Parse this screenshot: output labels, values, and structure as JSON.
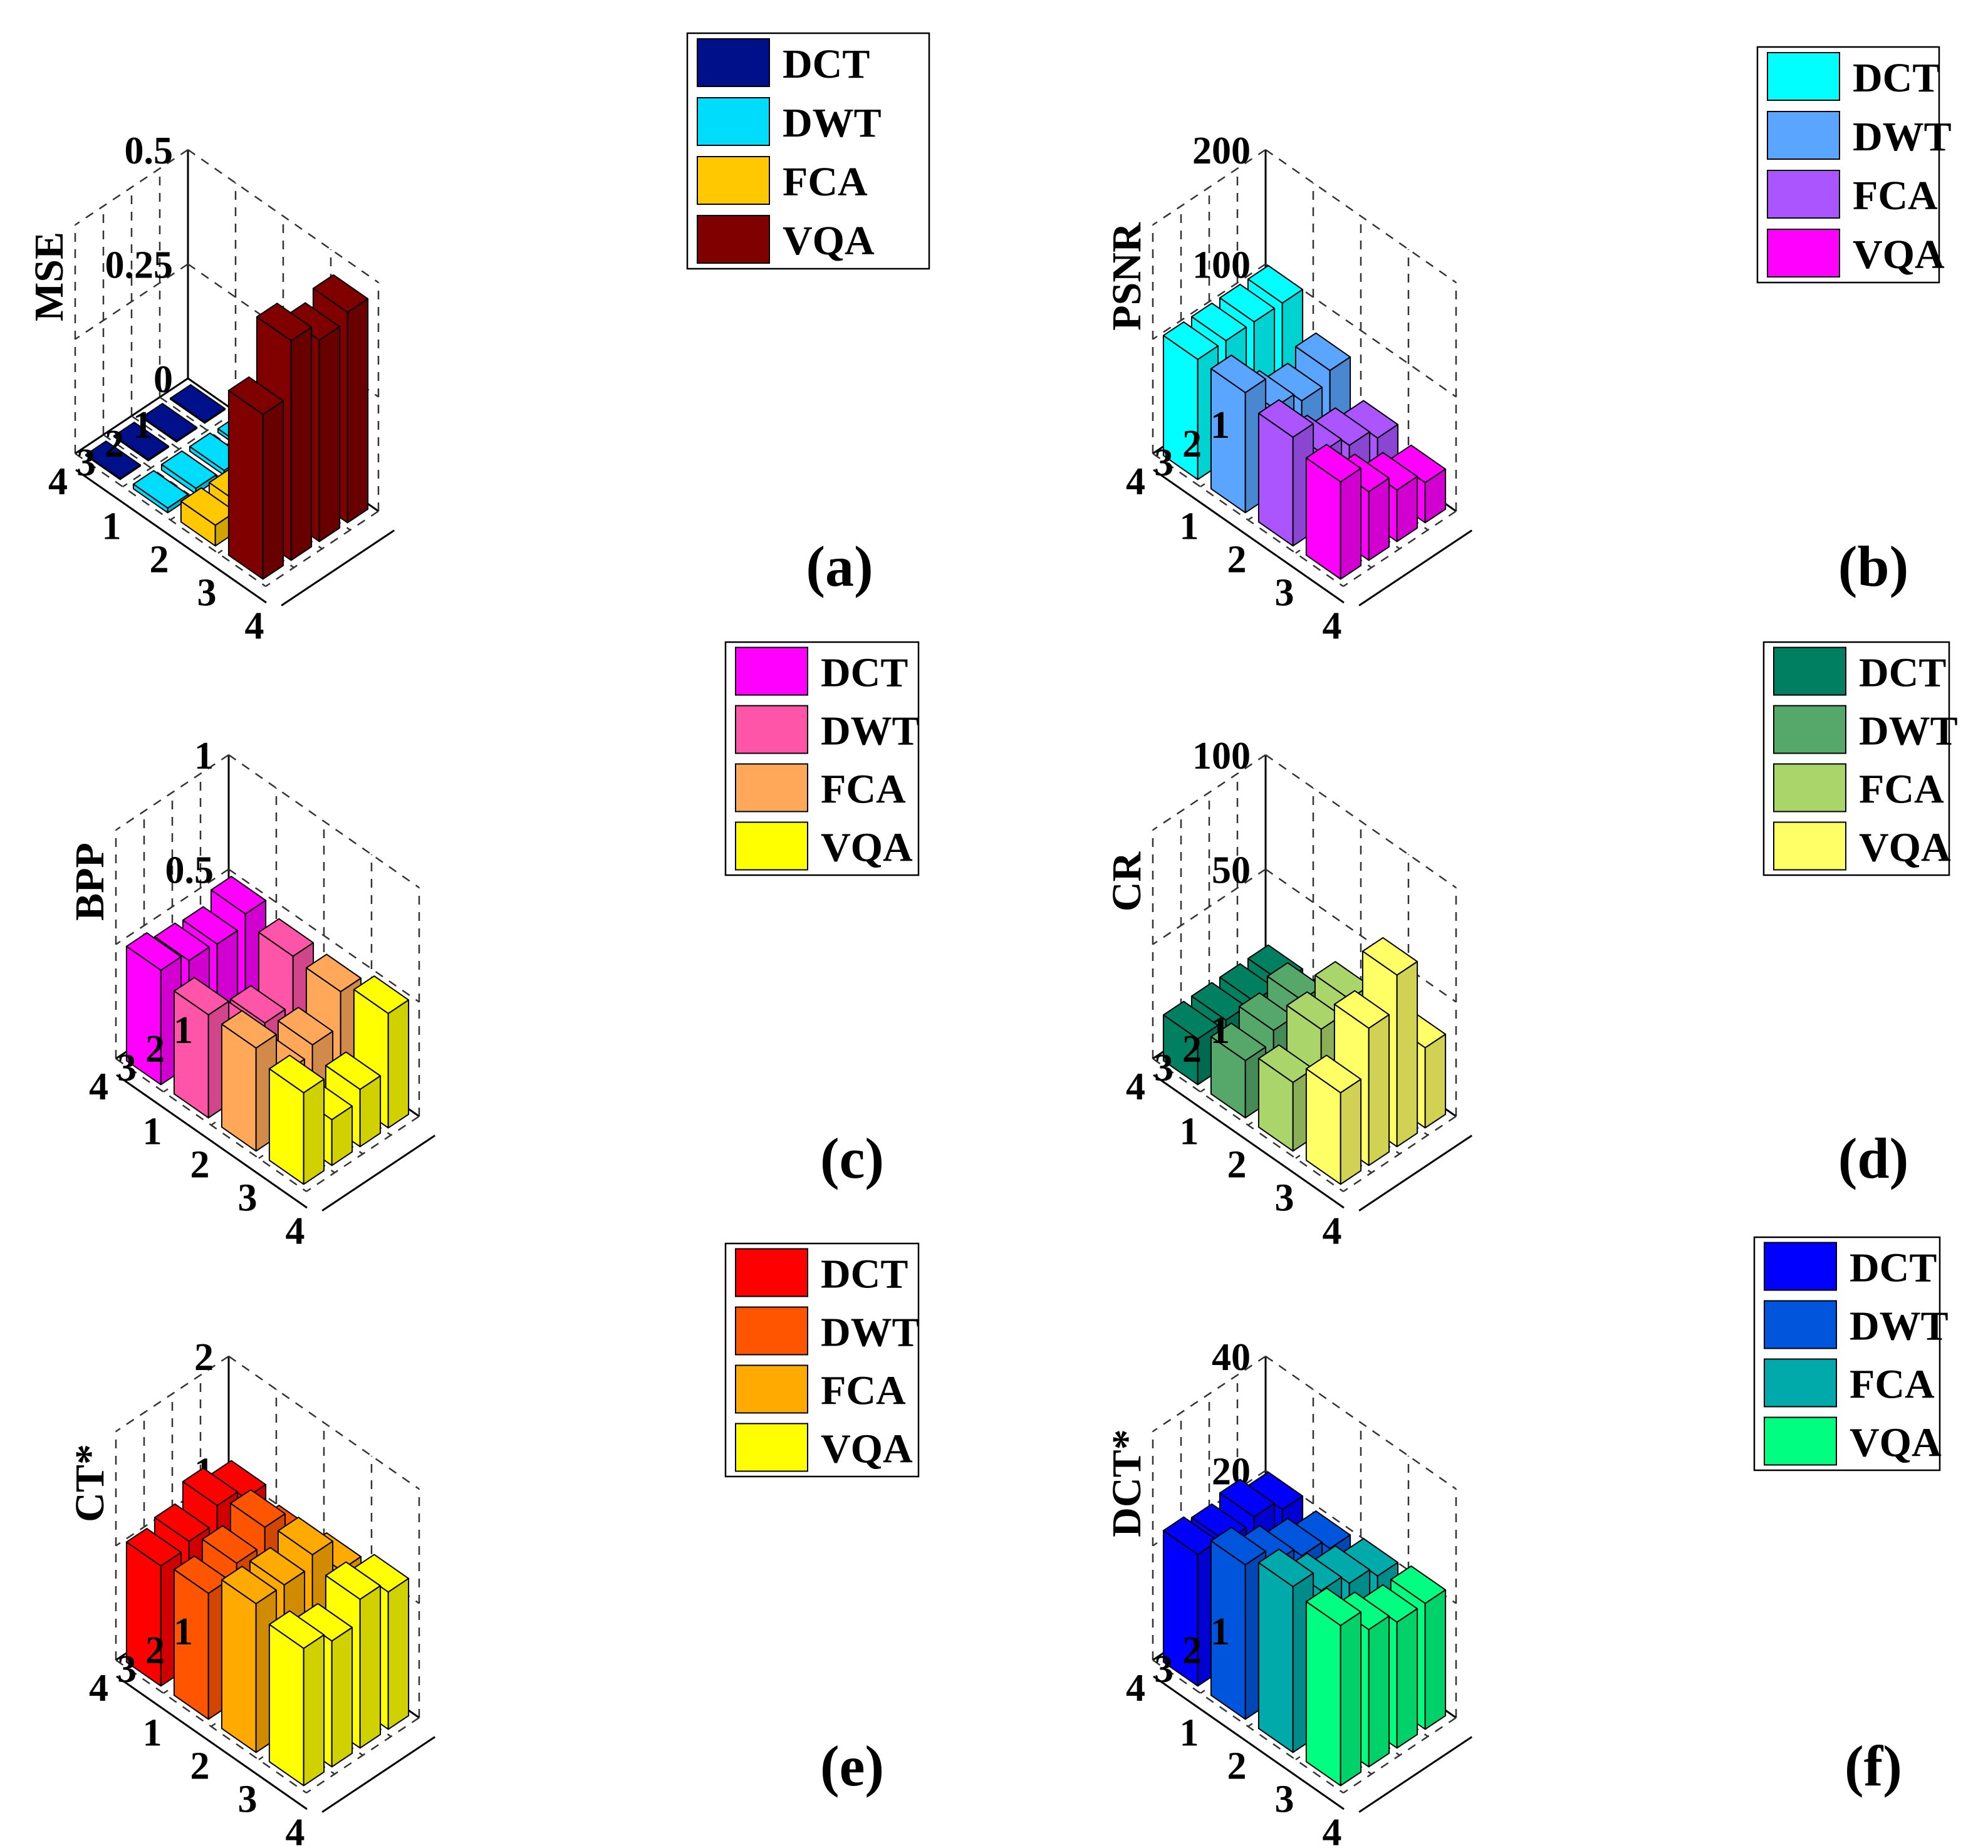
{
  "chart_data": [
    {
      "type": "bar3d",
      "panel_label": "(a)",
      "zlabel": "MSE",
      "zlim": [
        0,
        0.5
      ],
      "zticks": [
        0,
        0.25,
        0.5
      ],
      "ztick_labels": [
        "0",
        "0.25",
        "0.5"
      ],
      "row_ticks": [
        "1",
        "2",
        "3",
        "4"
      ],
      "col_ticks": [
        "1",
        "2",
        "3",
        "4"
      ],
      "legend_position": "top-right",
      "series": [
        {
          "name": "DCT",
          "color": "#000f8a",
          "values": [
            0.002,
            0.002,
            0.002,
            0.002
          ]
        },
        {
          "name": "DWT",
          "color": "#00dcfc",
          "values": [
            0.008,
            0.01,
            0.012,
            0.01
          ]
        },
        {
          "name": "FCA",
          "color": "#ffc800",
          "values": [
            0.06,
            0.045,
            0.045,
            0.045
          ]
        },
        {
          "name": "VQA",
          "color": "#800000",
          "values": [
            0.46,
            0.44,
            0.48,
            0.36
          ]
        }
      ]
    },
    {
      "type": "bar3d",
      "panel_label": "(b)",
      "zlabel": "PSNR",
      "zlim": [
        0,
        200
      ],
      "zticks": [
        0,
        100,
        200
      ],
      "ztick_labels": [
        "0",
        "100",
        "200"
      ],
      "row_ticks": [
        "1",
        "2",
        "3",
        "4"
      ],
      "col_ticks": [
        "1",
        "2",
        "3",
        "4"
      ],
      "legend_position": "top-right",
      "series": [
        {
          "name": "DCT",
          "color": "#00ffff",
          "values": [
            105,
            105,
            105,
            105
          ]
        },
        {
          "name": "DWT",
          "color": "#5aa5ff",
          "values": [
            75,
            65,
            75,
            105
          ]
        },
        {
          "name": "FCA",
          "color": "#aa55ff",
          "values": [
            45,
            55,
            65,
            95
          ]
        },
        {
          "name": "VQA",
          "color": "#ff00ff",
          "values": [
            35,
            45,
            60,
            85
          ]
        }
      ]
    },
    {
      "type": "bar3d",
      "panel_label": "(c)",
      "zlabel": "BPP",
      "zlim": [
        0,
        1
      ],
      "zticks": [
        0,
        0.5,
        1
      ],
      "ztick_labels": [
        "0",
        "0.5",
        "1"
      ],
      "row_ticks": [
        "1",
        "2",
        "3",
        "4"
      ],
      "col_ticks": [
        "1",
        "2",
        "3",
        "4"
      ],
      "legend_position": "top-right",
      "series": [
        {
          "name": "DCT",
          "color": "#ff00ff",
          "values": [
            0.5,
            0.45,
            0.46,
            0.5
          ]
        },
        {
          "name": "DWT",
          "color": "#ff55a8",
          "values": [
            0.46,
            0.25,
            0.28,
            0.45
          ]
        },
        {
          "name": "FCA",
          "color": "#ffa85a",
          "values": [
            0.45,
            0.3,
            0.26,
            0.45
          ]
        },
        {
          "name": "VQA",
          "color": "#ffff00",
          "values": [
            0.5,
            0.25,
            0.2,
            0.4
          ]
        }
      ]
    },
    {
      "type": "bar3d",
      "panel_label": "(d)",
      "zlabel": "CR",
      "zlim": [
        0,
        100
      ],
      "zticks": [
        0,
        50,
        100
      ],
      "ztick_labels": [
        "0",
        "50",
        "100"
      ],
      "row_ticks": [
        "1",
        "2",
        "3",
        "4"
      ],
      "col_ticks": [
        "1",
        "2",
        "3",
        "4"
      ],
      "legend_position": "top-right",
      "series": [
        {
          "name": "DCT",
          "color": "#008060",
          "values": [
            20,
            20,
            20,
            20
          ]
        },
        {
          "name": "DWT",
          "color": "#55a86a",
          "values": [
            20,
            35,
            30,
            25
          ]
        },
        {
          "name": "FCA",
          "color": "#aad56a",
          "values": [
            25,
            50,
            45,
            30
          ]
        },
        {
          "name": "VQA",
          "color": "#ffff66",
          "values": [
            35,
            75,
            60,
            40
          ]
        }
      ]
    },
    {
      "type": "bar3d",
      "panel_label": "(e)",
      "zlabel": "CT*",
      "zlim": [
        0,
        2
      ],
      "zticks": [
        0,
        1,
        2
      ],
      "ztick_labels": [
        "0",
        "1",
        "2"
      ],
      "row_ticks": [
        "1",
        "2",
        "3",
        "4"
      ],
      "col_ticks": [
        "1",
        "2",
        "3",
        "4"
      ],
      "legend_position": "top-right",
      "series": [
        {
          "name": "DCT",
          "color": "#ff0000",
          "values": [
            1.15,
            1.25,
            1.1,
            1.05
          ]
        },
        {
          "name": "DWT",
          "color": "#ff5500",
          "values": [
            1.05,
            1.35,
            1.2,
            1.1
          ]
        },
        {
          "name": "FCA",
          "color": "#ffaa00",
          "values": [
            1.1,
            1.4,
            1.3,
            1.3
          ]
        },
        {
          "name": "VQA",
          "color": "#ffff00",
          "values": [
            1.2,
            1.3,
            1.1,
            1.2
          ]
        }
      ]
    },
    {
      "type": "bar3d",
      "panel_label": "(f)",
      "zlabel": "DCT*",
      "zlim": [
        0,
        40
      ],
      "zticks": [
        0,
        20,
        40
      ],
      "ztick_labels": [
        "0",
        "20",
        "40"
      ],
      "row_ticks": [
        "1",
        "2",
        "3",
        "4"
      ],
      "col_ticks": [
        "1",
        "2",
        "3",
        "4"
      ],
      "legend_position": "top-right",
      "series": [
        {
          "name": "DCT",
          "color": "#0000ff",
          "values": [
            21,
            23,
            22,
            23
          ]
        },
        {
          "name": "DWT",
          "color": "#0055dd",
          "values": [
            20,
            22,
            24,
            27
          ]
        },
        {
          "name": "FCA",
          "color": "#00aaaa",
          "values": [
            21,
            23,
            25,
            29
          ]
        },
        {
          "name": "VQA",
          "color": "#00ff80",
          "values": [
            22,
            22,
            24,
            28
          ]
        }
      ]
    }
  ]
}
